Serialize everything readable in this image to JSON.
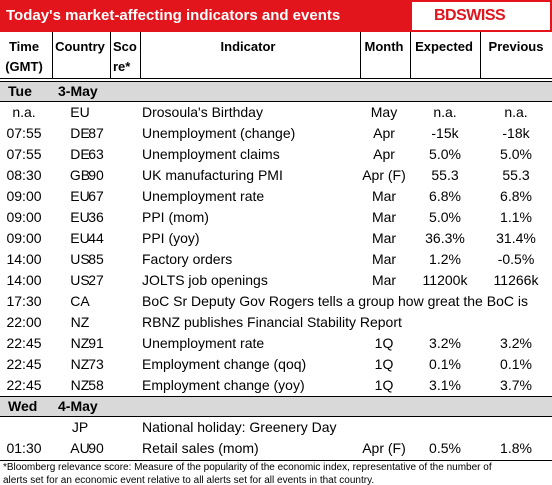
{
  "header": {
    "title": "Today's market-affecting indicators and events",
    "logo": "BDSWISS"
  },
  "columns": [
    [
      "Time",
      "(GMT)"
    ],
    [
      "Country"
    ],
    [
      "Sco",
      "re*"
    ],
    [
      "Indicator"
    ],
    [
      "Month"
    ],
    [
      "Expected"
    ],
    [
      "Previous"
    ]
  ],
  "sections": [
    {
      "day": "Tue",
      "date": "3-May",
      "rows": [
        {
          "time": "n.a.",
          "country": "EU",
          "indicator": "Drosoula's Birthday",
          "month": "May",
          "expected": "n.a.",
          "previous": "n.a."
        },
        {
          "time": "07:55",
          "country": "DE",
          "score": "87",
          "indicator": "Unemployment (change)",
          "month": "Apr",
          "expected": "-15k",
          "previous": "-18k"
        },
        {
          "time": "07:55",
          "country": "DE",
          "score": "63",
          "indicator": "Unemployment claims",
          "month": "Apr",
          "expected": "5.0%",
          "previous": "5.0%"
        },
        {
          "time": "08:30",
          "country": "GB",
          "score": "90",
          "indicator": "UK manufacturing PMI",
          "month": "Apr (F)",
          "expected": "55.3",
          "previous": "55.3"
        },
        {
          "time": "09:00",
          "country": "EU",
          "score": "67",
          "indicator": "Unemployment rate",
          "month": "Mar",
          "expected": "6.8%",
          "previous": "6.8%"
        },
        {
          "time": "09:00",
          "country": "EU",
          "score": "36",
          "indicator": "PPI (mom)",
          "month": "Mar",
          "expected": "5.0%",
          "previous": "1.1%"
        },
        {
          "time": "09:00",
          "country": "EU",
          "score": "44",
          "indicator": "PPI (yoy)",
          "month": "Mar",
          "expected": "36.3%",
          "previous": "31.4%"
        },
        {
          "time": "14:00",
          "country": "US",
          "score": "85",
          "indicator": "Factory orders",
          "month": "Mar",
          "expected": "1.2%",
          "previous": "-0.5%"
        },
        {
          "time": "14:00",
          "country": "US",
          "score": "27",
          "indicator": "JOLTS job openings",
          "month": "Mar",
          "expected": "11200k",
          "previous": "11266k"
        },
        {
          "time": "17:30",
          "country": "CA",
          "indicator": "BoC Sr Deputy Gov Rogers tells a group how great the BoC is"
        },
        {
          "time": "22:00",
          "country": "NZ",
          "indicator": "RBNZ publishes Financial Stability Report"
        },
        {
          "time": "22:45",
          "country": "NZ",
          "score": "91",
          "indicator": "Unemployment rate",
          "month": "1Q",
          "expected": "3.2%",
          "previous": "3.2%"
        },
        {
          "time": "22:45",
          "country": "NZ",
          "score": "73",
          "indicator": "Employment change (qoq)",
          "month": "1Q",
          "expected": "0.1%",
          "previous": "0.1%"
        },
        {
          "time": "22:45",
          "country": "NZ",
          "score": "58",
          "indicator": "Employment change (yoy)",
          "month": "1Q",
          "expected": "3.1%",
          "previous": "3.7%"
        }
      ]
    },
    {
      "day": "Wed",
      "date": "4-May",
      "rows": [
        {
          "country": "JP",
          "indicator": "National holiday: Greenery Day"
        },
        {
          "time": "01:30",
          "country": "AU",
          "score": "90",
          "indicator": "Retail sales (mom)",
          "month": "Apr (F)",
          "expected": "0.5%",
          "previous": "1.8%"
        }
      ]
    }
  ],
  "footnote": [
    "*Bloomberg relevance score:  Measure of the popularity of the economic index, representative of the number of",
    "alerts set for an economic event relative to all alerts set for all events in that country."
  ]
}
